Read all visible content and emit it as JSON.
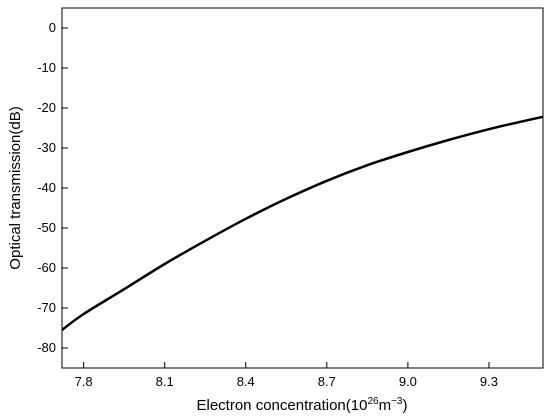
{
  "chart_data": {
    "type": "line",
    "title": "",
    "xlabel": "Electron concentration",
    "xlabel_unit": "(10",
    "xlabel_exp1": "26",
    "xlabel_mid": "m",
    "xlabel_exp2": "−3",
    "xlabel_close": ")",
    "ylabel": "Optical transmission(dB)",
    "xlim": [
      7.72,
      9.5
    ],
    "ylim": [
      -85,
      5
    ],
    "xticks": [
      7.8,
      8.1,
      8.4,
      8.7,
      9.0,
      9.3
    ],
    "xtick_labels": [
      "7.8",
      "8.1",
      "8.4",
      "8.7",
      "9.0",
      "9.3"
    ],
    "yticks": [
      0,
      -10,
      -20,
      -30,
      -40,
      -50,
      -60,
      -70,
      -80
    ],
    "ytick_labels": [
      "0",
      "-10",
      "-20",
      "-30",
      "-40",
      "-50",
      "-60",
      "-70",
      "-80"
    ],
    "grid": false,
    "series": [
      {
        "color": "#000000",
        "x": [
          7.72,
          7.8,
          7.95,
          8.1,
          8.25,
          8.4,
          8.55,
          8.7,
          8.85,
          9.0,
          9.15,
          9.3,
          9.4,
          9.5
        ],
        "y": [
          -75.5,
          -71.5,
          -65.3,
          -59.0,
          -53.2,
          -47.7,
          -42.7,
          -38.2,
          -34.3,
          -31.0,
          -28.0,
          -25.3,
          -23.7,
          -22.2
        ]
      }
    ]
  }
}
